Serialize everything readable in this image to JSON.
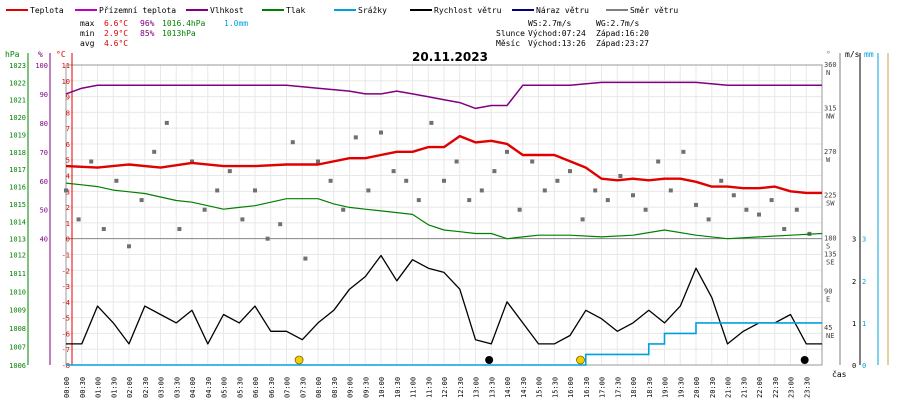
{
  "chart_data": {
    "type": "line",
    "title": "20.11.2023",
    "legend": [
      {
        "label": "Teplota",
        "color": "#e00000"
      },
      {
        "label": "Přízemní teplota",
        "color": "#c000c0"
      },
      {
        "label": "Vlhkost",
        "color": "#800080"
      },
      {
        "label": "Tlak",
        "color": "#008000"
      },
      {
        "label": "Srážky",
        "color": "#00a0e0"
      },
      {
        "label": "Rychlost větru",
        "color": "#000000"
      },
      {
        "label": "Náraz větru",
        "color": "#000080"
      },
      {
        "label": "Směr větru",
        "color": "#808080"
      }
    ],
    "stats": {
      "rows": [
        {
          "label": "max",
          "temp": "6.6°C",
          "hum": "96%",
          "press": "1016.4hPa",
          "rain": "1.0mm"
        },
        {
          "label": "min",
          "temp": "2.9°C",
          "hum": "85%",
          "press": "1013hPa",
          "rain": ""
        },
        {
          "label": "avg",
          "temp": "4.6°C",
          "hum": "",
          "press": "",
          "rain": ""
        }
      ],
      "wind": [
        "WS:2.7m/s",
        "WG:2.7m/s"
      ],
      "sun": [
        "Slunce",
        "Východ:07:24",
        "Západ:16:20"
      ],
      "moon": [
        "Měsíc",
        "Východ:13:26",
        "Západ:23:27"
      ]
    },
    "axis_titles": {
      "press": "hPa",
      "hum": "%",
      "temp": "°C",
      "dir": "°",
      "speed": "m/s",
      "rain": "mm",
      "time": "čas"
    },
    "axes": {
      "press_upper": {
        "ticks": [
          1023,
          1022,
          1021,
          1020,
          1019,
          1018,
          1017,
          1016,
          1015,
          1014,
          1013
        ],
        "range": [
          1013,
          1023
        ]
      },
      "press_lower": {
        "ticks": [
          1012,
          1011,
          1010,
          1009,
          1008,
          1007,
          1006
        ],
        "range": [
          1006,
          1012
        ]
      },
      "hum": {
        "ticks": [
          100,
          90,
          80,
          70,
          60,
          50,
          40
        ],
        "range": [
          40,
          100
        ]
      },
      "temp": {
        "ticks": [
          11,
          10,
          9,
          8,
          7,
          6,
          5,
          4,
          3,
          2,
          1,
          0,
          -1,
          -2,
          -3,
          -4,
          -5,
          -6,
          -7,
          -8
        ],
        "range": [
          -8,
          11
        ]
      },
      "dir_upper": {
        "ticks": [
          "360 N",
          "315 NW",
          "270 W",
          "225 SW",
          "180 S"
        ],
        "range": [
          180,
          360
        ]
      },
      "dir_lower": {
        "ticks": [
          "135 SE",
          "90 E",
          "45 NE"
        ],
        "range": [
          0,
          135
        ]
      },
      "speed": {
        "ticks": [
          3,
          2,
          1,
          0
        ],
        "range": [
          0,
          3
        ]
      },
      "rain": {
        "ticks": [
          3,
          2,
          1,
          0
        ],
        "range": [
          0,
          3
        ]
      }
    },
    "x_ticks": [
      "00:00",
      "00:30",
      "01:00",
      "01:30",
      "02:00",
      "02:30",
      "03:00",
      "03:30",
      "04:00",
      "04:30",
      "05:00",
      "05:30",
      "06:00",
      "06:30",
      "07:00",
      "07:30",
      "08:00",
      "08:30",
      "09:00",
      "09:30",
      "10:00",
      "10:30",
      "11:00",
      "11:30",
      "12:00",
      "12:30",
      "13:00",
      "13:30",
      "14:00",
      "14:30",
      "15:00",
      "15:30",
      "16:00",
      "16:30",
      "17:00",
      "17:30",
      "18:00",
      "18:30",
      "19:00",
      "19:30",
      "20:00",
      "20:30",
      "21:00",
      "21:30",
      "22:00",
      "22:30",
      "23:00",
      "23:30"
    ],
    "x_range_hours": [
      0,
      24
    ],
    "series": [
      {
        "name": "Teplota",
        "unit": "°C",
        "x": [
          0,
          1,
          2,
          3,
          4,
          5,
          6,
          7,
          8,
          9,
          9.5,
          10,
          10.5,
          11,
          11.5,
          12,
          12.5,
          13,
          13.5,
          14,
          14.5,
          15,
          15.5,
          16,
          16.5,
          17,
          17.5,
          18,
          18.5,
          19,
          19.5,
          20,
          20.5,
          21,
          21.5,
          22,
          22.5,
          23,
          23.5,
          24
        ],
        "values": [
          4.6,
          4.5,
          4.7,
          4.5,
          4.8,
          4.6,
          4.6,
          4.7,
          4.7,
          5.1,
          5.1,
          5.3,
          5.5,
          5.5,
          5.8,
          5.8,
          6.5,
          6.1,
          6.2,
          6.0,
          5.3,
          5.3,
          5.3,
          4.9,
          4.5,
          3.8,
          3.7,
          3.8,
          3.7,
          3.8,
          3.8,
          3.6,
          3.3,
          3.3,
          3.2,
          3.2,
          3.3,
          3.0,
          2.9,
          2.9
        ]
      },
      {
        "name": "Vlhkost",
        "unit": "%",
        "x": [
          0,
          0.5,
          1,
          2,
          3,
          4,
          5,
          6,
          7,
          8,
          9,
          9.5,
          10,
          10.5,
          11,
          11.5,
          12,
          12.5,
          13,
          13.5,
          14,
          14.5,
          15,
          16,
          17,
          18,
          19,
          20,
          21,
          22,
          23,
          24
        ],
        "values": [
          90,
          92,
          93,
          93,
          93,
          93,
          93,
          93,
          93,
          92,
          91,
          90,
          90,
          91,
          90,
          89,
          88,
          87,
          85,
          86,
          86,
          93,
          93,
          93,
          94,
          94,
          94,
          94,
          93,
          93,
          93,
          93
        ]
      },
      {
        "name": "Tlak",
        "unit": "hPa",
        "x": [
          0,
          0.5,
          1,
          1.5,
          2,
          2.5,
          3,
          3.5,
          4,
          4.5,
          5,
          5.5,
          6,
          6.5,
          7,
          7.5,
          8,
          8.5,
          9,
          9.5,
          10,
          10.5,
          11,
          11.5,
          12,
          12.5,
          13,
          13.5,
          14,
          14.5,
          15,
          16,
          17,
          18,
          19,
          20,
          21,
          22,
          23,
          24
        ],
        "values": [
          1016.2,
          1016.1,
          1016.0,
          1015.8,
          1015.7,
          1015.6,
          1015.4,
          1015.2,
          1015.1,
          1014.9,
          1014.7,
          1014.8,
          1014.9,
          1015.1,
          1015.3,
          1015.3,
          1015.3,
          1015.0,
          1014.8,
          1014.7,
          1014.6,
          1014.5,
          1014.4,
          1013.8,
          1013.5,
          1013.4,
          1013.3,
          1013.3,
          1013.0,
          1013.1,
          1013.2,
          1013.2,
          1013.1,
          1013.2,
          1013.5,
          1013.2,
          1013.0,
          1013.1,
          1013.2,
          1013.3
        ]
      },
      {
        "name": "Srážky",
        "unit": "mm",
        "x": [
          0,
          16,
          16.5,
          17.5,
          18,
          18.5,
          19,
          19.5,
          20,
          24
        ],
        "values": [
          0,
          0,
          0.25,
          0.25,
          0.25,
          0.5,
          0.75,
          0.75,
          1.0,
          1.0
        ]
      },
      {
        "name": "Rychlost větru",
        "unit": "m/s",
        "x": [
          0,
          0.5,
          1,
          1.5,
          2,
          2.5,
          3,
          3.5,
          4,
          4.5,
          5,
          5.5,
          6,
          6.5,
          7,
          7.5,
          8,
          8.5,
          9,
          9.5,
          10,
          10.5,
          11,
          11.5,
          12,
          12.5,
          13,
          13.5,
          14,
          14.5,
          15,
          15.5,
          16,
          16.5,
          17,
          17.5,
          18,
          18.5,
          19,
          19.5,
          20,
          20.5,
          21,
          21.5,
          22,
          22.5,
          23,
          23.5,
          24
        ],
        "values": [
          0.5,
          0.5,
          1.4,
          1.0,
          0.5,
          1.4,
          1.2,
          1.0,
          1.3,
          0.5,
          1.2,
          1.0,
          1.4,
          0.8,
          0.8,
          0.6,
          1.0,
          1.3,
          1.8,
          2.1,
          2.6,
          2.0,
          2.5,
          2.3,
          2.2,
          1.8,
          0.6,
          0.5,
          1.5,
          1.0,
          0.5,
          0.5,
          0.7,
          1.3,
          1.1,
          0.8,
          1.0,
          1.3,
          1.0,
          1.4,
          2.3,
          1.6,
          0.5,
          0.8,
          1.0,
          1.0,
          1.2,
          0.5,
          0.5
        ]
      },
      {
        "name": "Směr větru",
        "unit": "°",
        "type": "scatter",
        "x": [
          0,
          0.4,
          0.8,
          1.2,
          1.6,
          2,
          2.4,
          2.8,
          3.2,
          3.6,
          4,
          4.4,
          4.8,
          5.2,
          5.6,
          6,
          6.4,
          6.8,
          7.2,
          7.6,
          8,
          8.4,
          8.8,
          9.2,
          9.6,
          10,
          10.4,
          10.8,
          11.2,
          11.6,
          12,
          12.4,
          12.8,
          13.2,
          13.6,
          14,
          14.4,
          14.8,
          15.2,
          15.6,
          16,
          16.4,
          16.8,
          17.2,
          17.6,
          18,
          18.4,
          18.8,
          19.2,
          19.6,
          20,
          20.4,
          20.8,
          21.2,
          21.6,
          22,
          22.4,
          22.8,
          23.2,
          23.6
        ],
        "values": [
          230,
          200,
          260,
          190,
          240,
          145,
          220,
          270,
          300,
          190,
          260,
          210,
          230,
          250,
          200,
          230,
          180,
          195,
          280,
          130,
          260,
          240,
          210,
          285,
          230,
          290,
          250,
          240,
          220,
          300,
          240,
          260,
          220,
          230,
          250,
          270,
          210,
          260,
          230,
          240,
          250,
          200,
          230,
          220,
          245,
          225,
          210,
          260,
          230,
          270,
          215,
          200,
          240,
          225,
          210,
          205,
          220,
          190,
          210,
          185
        ]
      }
    ],
    "markers": [
      {
        "label": "sunrise",
        "time": "07:24"
      },
      {
        "label": "moonrise",
        "time": "13:26"
      },
      {
        "label": "sunset",
        "time": "16:20"
      },
      {
        "label": "moonset",
        "time": "23:27"
      }
    ]
  }
}
